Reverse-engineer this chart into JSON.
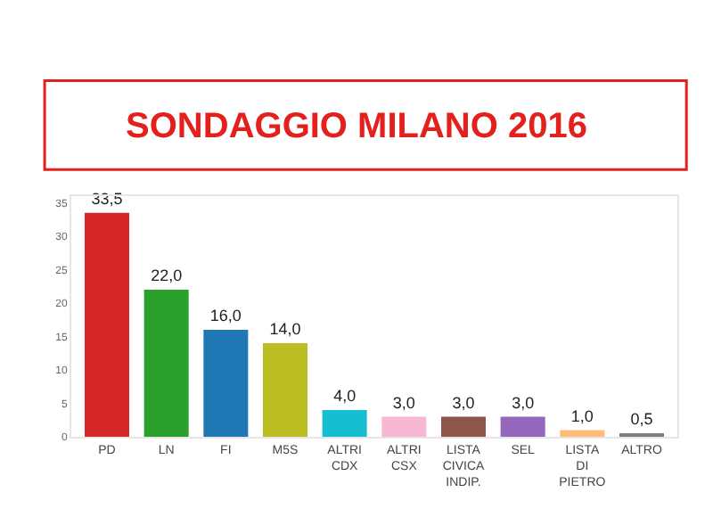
{
  "chart_data": {
    "type": "bar",
    "title": "SONDAGGIO MILANO 2016",
    "categories": [
      "PD",
      "LN",
      "FI",
      "M5S",
      "ALTRI CDX",
      "ALTRI CSX",
      "LISTA CIVICA INDIP.",
      "SEL",
      "LISTA DI PIETRO",
      "ALTRO"
    ],
    "values": [
      33.5,
      22.0,
      16.0,
      14.0,
      4.0,
      3.0,
      3.0,
      3.0,
      1.0,
      0.5
    ],
    "colors": [
      "#d62728",
      "#2ca02c",
      "#1f77b4",
      "#bcbd22",
      "#17becf",
      "#f7b6d2",
      "#8c564b",
      "#9467bd",
      "#ffbb78",
      "#7f7f7f"
    ],
    "value_labels": [
      "33,5",
      "22,0",
      "16,0",
      "14,0",
      "4,0",
      "3,0",
      "3,0",
      "3,0",
      "1,0",
      "0,5"
    ],
    "ylim": [
      0,
      36
    ],
    "yticks": [
      0,
      5,
      10,
      15,
      20,
      25,
      30,
      35
    ]
  }
}
